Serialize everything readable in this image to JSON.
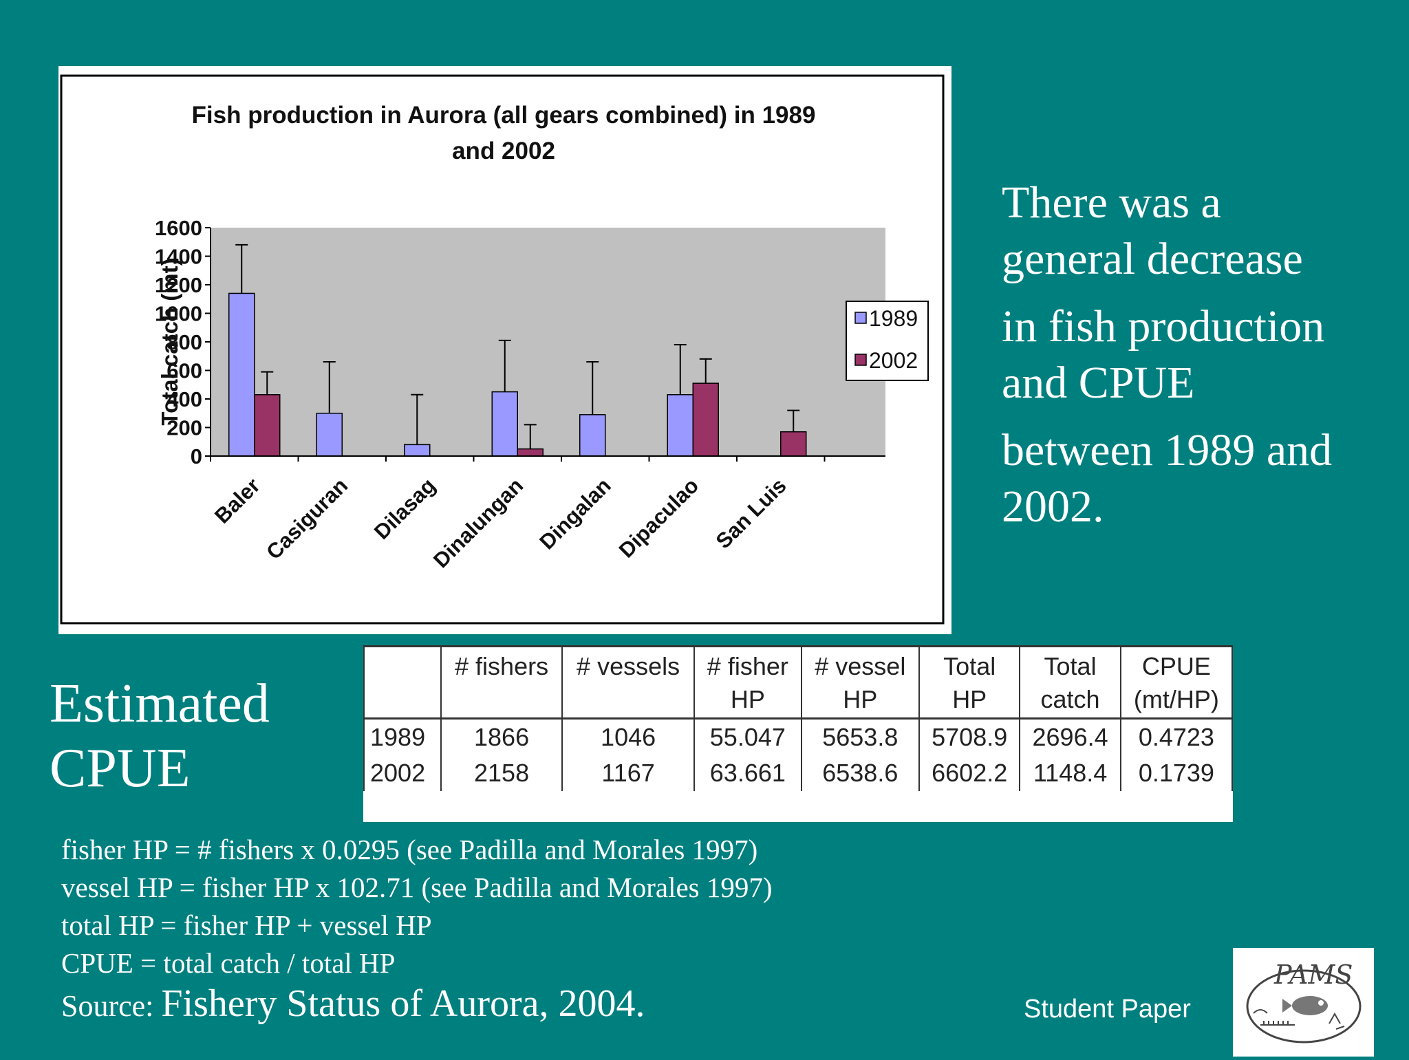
{
  "chart_data": {
    "type": "bar",
    "title": "Fish production in Aurora (all gears combined) in 1989 and 2002",
    "title_lines": [
      "Fish production in Aurora (all gears combined) in 1989",
      "and 2002"
    ],
    "ylabel": "Total catch (mt)",
    "xlabel": "",
    "ylim": [
      0,
      1600
    ],
    "yticks": [
      0,
      200,
      400,
      600,
      800,
      1000,
      1200,
      1400,
      1600
    ],
    "categories": [
      "Baler",
      "Casiguran",
      "Dilasag",
      "Dinalungan",
      "Dingalan",
      "Dipaculao",
      "San Luis"
    ],
    "series": [
      {
        "name": "1989",
        "color": "#9999ff",
        "values": [
          1140,
          300,
          80,
          450,
          290,
          430,
          0
        ],
        "error_top": [
          1480,
          660,
          430,
          810,
          660,
          780,
          null
        ]
      },
      {
        "name": "2002",
        "color": "#993366",
        "values": [
          430,
          0,
          0,
          50,
          0,
          510,
          170
        ],
        "error_top": [
          590,
          null,
          null,
          220,
          null,
          680,
          320
        ]
      }
    ],
    "legend_position": "right",
    "plot_background": "#c0c0c0",
    "grid": false
  },
  "side_text": {
    "line1": "There was a",
    "line2": "general decrease",
    "line3": "in fish production",
    "line4": "and CPUE",
    "line5": "between 1989 and",
    "line6": "2002."
  },
  "cpue_title": {
    "line1": "Estimated",
    "line2": "CPUE"
  },
  "table": {
    "headers": [
      {
        "l1": "",
        "l2": ""
      },
      {
        "l1": "# fishers",
        "l2": ""
      },
      {
        "l1": "# vessels",
        "l2": ""
      },
      {
        "l1": "# fisher",
        "l2": "HP"
      },
      {
        "l1": "# vessel",
        "l2": "HP"
      },
      {
        "l1": "Total",
        "l2": "HP"
      },
      {
        "l1": "Total",
        "l2": "catch"
      },
      {
        "l1": "CPUE",
        "l2": "(mt/HP)"
      }
    ],
    "rows": [
      [
        "1989",
        "1866",
        "1046",
        "55.047",
        "5653.8",
        "5708.9",
        "2696.4",
        "0.4723"
      ],
      [
        "2002",
        "2158",
        "1167",
        "63.661",
        "6538.6",
        "6602.2",
        "1148.4",
        "0.1739"
      ]
    ]
  },
  "formulas": [
    "fisher HP = # fishers x 0.0295 (see Padilla and Morales 1997)",
    "vessel HP = fisher HP x 102.71 (see Padilla and Morales 1997)",
    "total HP = fisher HP + vessel HP",
    "CPUE = total catch / total HP"
  ],
  "source": {
    "prefix": "Source: ",
    "title": "Fishery Status of Aurora, 2004."
  },
  "footer": {
    "label": "Student Paper",
    "logo_text": "PAMS"
  }
}
